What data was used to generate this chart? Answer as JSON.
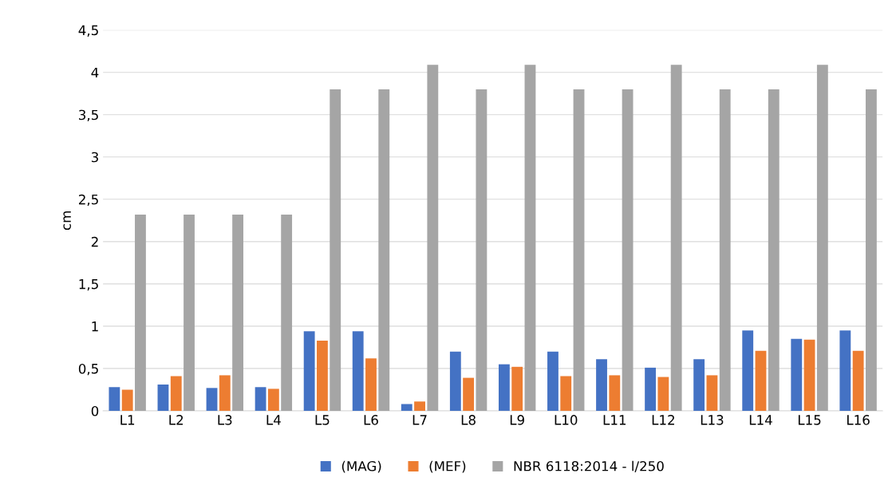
{
  "chart_data": {
    "type": "bar",
    "ylabel": "cm",
    "categories": [
      "L1",
      "L2",
      "L3",
      "L4",
      "L5",
      "L6",
      "L7",
      "L8",
      "L9",
      "L10",
      "L11",
      "L12",
      "L13",
      "L14",
      "L15",
      "L16"
    ],
    "series": [
      {
        "name": "(MAG)",
        "color": "#4472c4",
        "values": [
          0.28,
          0.31,
          0.27,
          0.28,
          0.94,
          0.94,
          0.08,
          0.7,
          0.55,
          0.7,
          0.61,
          0.51,
          0.61,
          0.95,
          0.85,
          0.95
        ]
      },
      {
        "name": "(MEF)",
        "color": "#ed7d31",
        "values": [
          0.25,
          0.41,
          0.42,
          0.26,
          0.83,
          0.62,
          0.11,
          0.39,
          0.52,
          0.41,
          0.42,
          0.4,
          0.42,
          0.71,
          0.84,
          0.71
        ]
      },
      {
        "name": "NBR 6118:2014 - l/250",
        "color": "#a5a5a5",
        "values": [
          2.32,
          2.32,
          2.32,
          2.32,
          3.8,
          3.8,
          4.09,
          3.8,
          4.09,
          3.8,
          3.8,
          4.09,
          3.8,
          3.8,
          4.09,
          3.8
        ]
      }
    ],
    "ylim": [
      0,
      4.5
    ],
    "yticks": [
      0,
      {
        "value": 0.5,
        "label": "0,5"
      },
      1,
      {
        "value": 1.5,
        "label": "1,5"
      },
      2,
      {
        "value": 2.5,
        "label": "2,5"
      },
      3,
      {
        "value": 3.5,
        "label": "3,5"
      },
      4,
      {
        "value": 4.5,
        "label": "4,5"
      }
    ],
    "grid": "y",
    "legend": "bottom"
  }
}
